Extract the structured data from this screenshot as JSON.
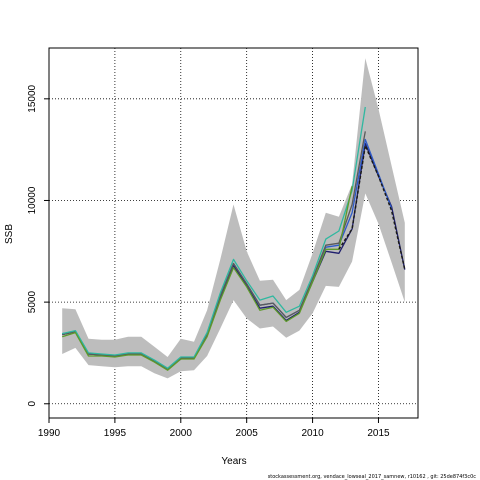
{
  "chart_data": {
    "type": "line",
    "title": "",
    "xlabel": "Years",
    "ylabel": "SSB",
    "xlim": [
      1990,
      2018
    ],
    "ylim": [
      -700,
      17500
    ],
    "xticks": [
      1990,
      1995,
      2000,
      2005,
      2010,
      2015
    ],
    "yticks": [
      0,
      5000,
      10000,
      15000
    ],
    "grid": true,
    "footnote": "stockassessment.org, vendace_lowseal_2017_samnew, r10162 , git: 25de874f3c0c",
    "confidence_band": {
      "x": [
        1991,
        1992,
        1993,
        1994,
        1995,
        1996,
        1997,
        1998,
        1999,
        2000,
        2001,
        2002,
        2003,
        2004,
        2005,
        2006,
        2007,
        2008,
        2009,
        2010,
        2011,
        2012,
        2013,
        2014,
        2015,
        2016,
        2017
      ],
      "lower": [
        2450,
        2750,
        1900,
        1850,
        1800,
        1850,
        1850,
        1500,
        1250,
        1600,
        1650,
        2350,
        3700,
        5100,
        4200,
        3700,
        3800,
        3250,
        3600,
        4450,
        5800,
        5750,
        7000,
        10350,
        8850,
        6950,
        5000
      ],
      "upper": [
        4700,
        4650,
        3200,
        3150,
        3150,
        3300,
        3300,
        2800,
        2300,
        3200,
        3050,
        4600,
        7100,
        9800,
        7500,
        6050,
        6100,
        5100,
        5600,
        7400,
        9400,
        9200,
        10800,
        17000,
        14500,
        11700,
        8900
      ]
    },
    "series": [
      {
        "color": "#1f1f6e",
        "x": [
          1991,
          1992,
          1993,
          1994,
          1995,
          1996,
          1997,
          1998,
          1999,
          2000,
          2001,
          2002,
          2003,
          2004,
          2005,
          2006,
          2007,
          2008,
          2009,
          2010,
          2011,
          2012,
          2013,
          2014,
          2015,
          2016,
          2017
        ],
        "values": [
          3400,
          3550,
          2450,
          2400,
          2350,
          2450,
          2450,
          2100,
          1700,
          2200,
          2250,
          3350,
          5200,
          6800,
          5800,
          4700,
          4800,
          4100,
          4500,
          6000,
          7500,
          7400,
          8600,
          12800,
          11200,
          9700,
          6600
        ]
      },
      {
        "color": "#2e5bc9",
        "x": [
          1991,
          1992,
          1993,
          1994,
          1995,
          1996,
          1997,
          1998,
          1999,
          2000,
          2001,
          2002,
          2003,
          2004,
          2005,
          2006,
          2007,
          2008,
          2009,
          2010,
          2011,
          2012,
          2013,
          2014,
          2015,
          2016
        ],
        "values": [
          3450,
          3550,
          2450,
          2400,
          2350,
          2450,
          2450,
          2100,
          1700,
          2250,
          2250,
          3400,
          5300,
          6900,
          5900,
          4850,
          4950,
          4250,
          4600,
          6100,
          7700,
          7800,
          9400,
          13000,
          11300,
          9600
        ]
      },
      {
        "color": "#5a5a5a",
        "x": [
          1991,
          1992,
          1993,
          1994,
          1995,
          1996,
          1997,
          1998,
          1999,
          2000,
          2001,
          2002,
          2003,
          2004,
          2005,
          2006,
          2007,
          2008,
          2009,
          2010,
          2011,
          2012,
          2013,
          2014
        ],
        "values": [
          3400,
          3550,
          2450,
          2400,
          2350,
          2450,
          2450,
          2100,
          1700,
          2250,
          2250,
          3400,
          5300,
          6900,
          5900,
          4850,
          4950,
          4250,
          4600,
          6150,
          7800,
          7900,
          9800,
          13400
        ]
      },
      {
        "color": "#2fb8a0",
        "x": [
          1991,
          1992,
          1993,
          1994,
          1995,
          1996,
          1997,
          1998,
          1999,
          2000,
          2001,
          2002,
          2003,
          2004,
          2005,
          2006,
          2007,
          2008,
          2009,
          2010,
          2011,
          2012,
          2013,
          2014
        ],
        "values": [
          3450,
          3600,
          2500,
          2450,
          2400,
          2500,
          2500,
          2150,
          1750,
          2300,
          2300,
          3500,
          5450,
          7100,
          6050,
          5100,
          5300,
          4500,
          4800,
          6300,
          8100,
          8500,
          10500,
          14600
        ]
      },
      {
        "color": "#5e9a2a",
        "x": [
          1991,
          1992,
          1993,
          1994,
          1995,
          1996,
          1997,
          1998,
          1999,
          2000,
          2001,
          2002,
          2003,
          2004,
          2005,
          2006,
          2007,
          2008,
          2009,
          2010,
          2011,
          2012,
          2013
        ],
        "values": [
          3300,
          3500,
          2350,
          2350,
          2300,
          2400,
          2400,
          2050,
          1650,
          2200,
          2200,
          3300,
          5100,
          6700,
          5750,
          4600,
          4750,
          4050,
          4450,
          6000,
          7600,
          7600,
          10700
        ]
      },
      {
        "color": "#1a1a1a",
        "dashed": true,
        "x": [
          2012,
          2013,
          2014,
          2015,
          2016,
          2017
        ],
        "values": [
          7600,
          8600,
          12700,
          11200,
          9500,
          6600
        ]
      }
    ]
  }
}
